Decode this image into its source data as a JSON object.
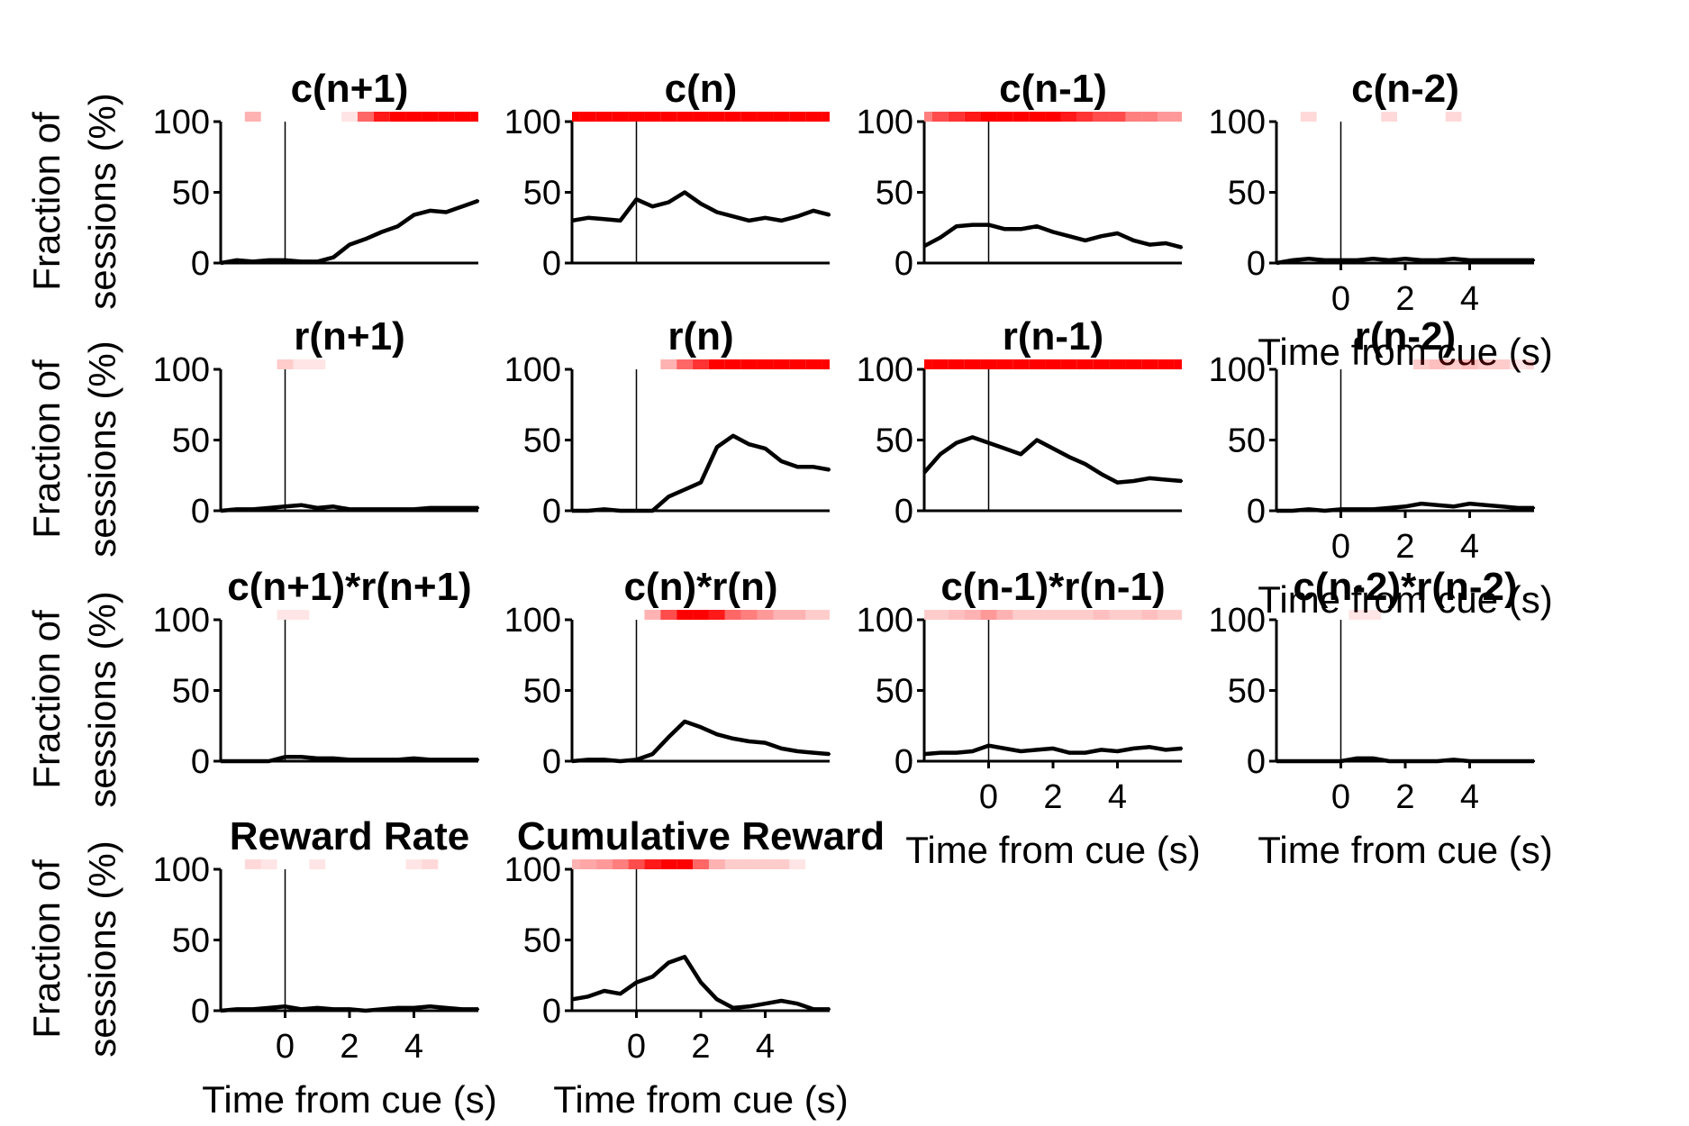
{
  "figure": {
    "y_axis_label_line1": "Fraction of",
    "y_axis_label_line2": "sessions (%)",
    "x_axis_label": "Time from cue (s)"
  },
  "chart_data": [
    {
      "type": "line",
      "title": "c(n+1)",
      "xlim": [
        -2,
        6
      ],
      "ylim": [
        0,
        100
      ],
      "xticks": [],
      "yticks": [
        0,
        50,
        100
      ],
      "x": [
        -2,
        -1.5,
        -1,
        -0.5,
        0,
        0.5,
        1,
        1.5,
        2,
        2.5,
        3,
        3.5,
        4,
        4.5,
        5,
        5.5,
        6
      ],
      "values": [
        0,
        2,
        1,
        2,
        2,
        1,
        1,
        4,
        13,
        17,
        22,
        26,
        34,
        37,
        36,
        40,
        44
      ],
      "significance": [
        0,
        0,
        0.3,
        0,
        0,
        0,
        0,
        0,
        0.1,
        0.6,
        0.9,
        1,
        1,
        1,
        1,
        1,
        1
      ]
    },
    {
      "type": "line",
      "title": "c(n)",
      "xlim": [
        -2,
        6
      ],
      "ylim": [
        0,
        100
      ],
      "xticks": [],
      "yticks": [
        0,
        50,
        100
      ],
      "x": [
        -2,
        -1.5,
        -1,
        -0.5,
        0,
        0.5,
        1,
        1.5,
        2,
        2.5,
        3,
        3.5,
        4,
        4.5,
        5,
        5.5,
        6
      ],
      "values": [
        30,
        32,
        31,
        30,
        45,
        40,
        43,
        50,
        42,
        36,
        33,
        30,
        32,
        30,
        33,
        37,
        34
      ],
      "significance": [
        1,
        1,
        1,
        1,
        1,
        1,
        1,
        1,
        1,
        1,
        1,
        1,
        1,
        1,
        1,
        1,
        1
      ]
    },
    {
      "type": "line",
      "title": "c(n-1)",
      "xlim": [
        -2,
        6
      ],
      "ylim": [
        0,
        100
      ],
      "xticks": [],
      "yticks": [
        0,
        50,
        100
      ],
      "x": [
        -2,
        -1.5,
        -1,
        -0.5,
        0,
        0.5,
        1,
        1.5,
        2,
        2.5,
        3,
        3.5,
        4,
        4.5,
        5,
        5.5,
        6
      ],
      "values": [
        12,
        18,
        26,
        27,
        27,
        24,
        24,
        26,
        22,
        19,
        16,
        19,
        21,
        16,
        13,
        14,
        11
      ],
      "significance": [
        0.5,
        0.7,
        0.8,
        0.9,
        1,
        1,
        1,
        1,
        1,
        0.9,
        0.8,
        0.7,
        0.7,
        0.5,
        0.5,
        0.4,
        0.4
      ]
    },
    {
      "type": "line",
      "title": "c(n-2)",
      "xlim": [
        -2,
        6
      ],
      "ylim": [
        0,
        100
      ],
      "xticks": [
        0,
        2,
        4
      ],
      "yticks": [
        0,
        50,
        100
      ],
      "x": [
        -2,
        -1.5,
        -1,
        -0.5,
        0,
        0.5,
        1,
        1.5,
        2,
        2.5,
        3,
        3.5,
        4,
        4.5,
        5,
        5.5,
        6
      ],
      "values": [
        0,
        2,
        3,
        2,
        2,
        2,
        3,
        2,
        3,
        2,
        2,
        3,
        2,
        2,
        2,
        2,
        2
      ],
      "significance": [
        0,
        0,
        0.15,
        0,
        0,
        0,
        0,
        0.15,
        0,
        0,
        0,
        0.15,
        0,
        0,
        0,
        0,
        0
      ]
    },
    {
      "type": "line",
      "title": "r(n+1)",
      "xlim": [
        -2,
        6
      ],
      "ylim": [
        0,
        100
      ],
      "xticks": [],
      "yticks": [
        0,
        50,
        100
      ],
      "x": [
        -2,
        -1.5,
        -1,
        -0.5,
        0,
        0.5,
        1,
        1.5,
        2,
        2.5,
        3,
        3.5,
        4,
        4.5,
        5,
        5.5,
        6
      ],
      "values": [
        0,
        1,
        1,
        2,
        3,
        4,
        2,
        3,
        1,
        1,
        1,
        1,
        1,
        2,
        2,
        2,
        2
      ],
      "significance": [
        0,
        0,
        0,
        0,
        0.2,
        0.1,
        0.1,
        0,
        0,
        0,
        0,
        0,
        0,
        0,
        0,
        0,
        0
      ]
    },
    {
      "type": "line",
      "title": "r(n)",
      "xlim": [
        -2,
        6
      ],
      "ylim": [
        0,
        100
      ],
      "xticks": [],
      "yticks": [
        0,
        50,
        100
      ],
      "x": [
        -2,
        -1.5,
        -1,
        -0.5,
        0,
        0.5,
        1,
        1.5,
        2,
        2.5,
        3,
        3.5,
        4,
        4.5,
        5,
        5.5,
        6
      ],
      "values": [
        0,
        0,
        1,
        0,
        0,
        0,
        10,
        15,
        20,
        45,
        53,
        47,
        44,
        35,
        31,
        31,
        29
      ],
      "significance": [
        0,
        0,
        0,
        0,
        0,
        0,
        0.3,
        0.6,
        0.8,
        1,
        1,
        1,
        1,
        1,
        1,
        1,
        1
      ]
    },
    {
      "type": "line",
      "title": "r(n-1)",
      "xlim": [
        -2,
        6
      ],
      "ylim": [
        0,
        100
      ],
      "xticks": [],
      "yticks": [
        0,
        50,
        100
      ],
      "x": [
        -2,
        -1.5,
        -1,
        -0.5,
        0,
        0.5,
        1,
        1.5,
        2,
        2.5,
        3,
        3.5,
        4,
        4.5,
        5,
        5.5,
        6
      ],
      "values": [
        27,
        40,
        48,
        52,
        48,
        44,
        40,
        50,
        44,
        38,
        33,
        26,
        20,
        21,
        23,
        22,
        21
      ],
      "significance": [
        1,
        1,
        1,
        1,
        1,
        1,
        1,
        1,
        1,
        1,
        1,
        1,
        1,
        1,
        1,
        1,
        1
      ]
    },
    {
      "type": "line",
      "title": "r(n-2)",
      "xlim": [
        -2,
        6
      ],
      "ylim": [
        0,
        100
      ],
      "xticks": [
        0,
        2,
        4
      ],
      "yticks": [
        0,
        50,
        100
      ],
      "x": [
        -2,
        -1.5,
        -1,
        -0.5,
        0,
        0.5,
        1,
        1.5,
        2,
        2.5,
        3,
        3.5,
        4,
        4.5,
        5,
        5.5,
        6
      ],
      "values": [
        0,
        0,
        1,
        0,
        1,
        1,
        1,
        2,
        3,
        5,
        4,
        3,
        5,
        4,
        3,
        2,
        2
      ],
      "significance": [
        0,
        0,
        0,
        0,
        0,
        0,
        0,
        0,
        0,
        0.2,
        0.25,
        0.2,
        0.25,
        0.2,
        0.2,
        0.1,
        0.15
      ]
    },
    {
      "type": "line",
      "title": "c(n+1)*r(n+1)",
      "xlim": [
        -2,
        6
      ],
      "ylim": [
        0,
        100
      ],
      "xticks": [],
      "yticks": [
        0,
        50,
        100
      ],
      "x": [
        -2,
        -1.5,
        -1,
        -0.5,
        0,
        0.5,
        1,
        1.5,
        2,
        2.5,
        3,
        3.5,
        4,
        4.5,
        5,
        5.5,
        6
      ],
      "values": [
        0,
        0,
        0,
        0,
        3,
        3,
        2,
        2,
        1,
        1,
        1,
        1,
        2,
        1,
        1,
        1,
        1
      ],
      "significance": [
        0,
        0,
        0,
        0,
        0.1,
        0.1,
        0,
        0,
        0,
        0,
        0,
        0,
        0,
        0,
        0,
        0,
        0
      ]
    },
    {
      "type": "line",
      "title": "c(n)*r(n)",
      "xlim": [
        -2,
        6
      ],
      "ylim": [
        0,
        100
      ],
      "xticks": [],
      "yticks": [
        0,
        50,
        100
      ],
      "x": [
        -2,
        -1.5,
        -1,
        -0.5,
        0,
        0.5,
        1,
        1.5,
        2,
        2.5,
        3,
        3.5,
        4,
        4.5,
        5,
        5.5,
        6
      ],
      "values": [
        0,
        1,
        1,
        0,
        1,
        5,
        17,
        28,
        24,
        19,
        16,
        14,
        13,
        9,
        7,
        6,
        5
      ],
      "significance": [
        0,
        0,
        0,
        0,
        0,
        0.3,
        0.7,
        1,
        1,
        0.9,
        0.6,
        0.5,
        0.4,
        0.3,
        0.3,
        0.2,
        0.2
      ]
    },
    {
      "type": "line",
      "title": "c(n-1)*r(n-1)",
      "xlim": [
        -2,
        6
      ],
      "ylim": [
        0,
        100
      ],
      "xticks": [
        0,
        2,
        4
      ],
      "yticks": [
        0,
        50,
        100
      ],
      "x": [
        -2,
        -1.5,
        -1,
        -0.5,
        0,
        0.5,
        1,
        1.5,
        2,
        2.5,
        3,
        3.5,
        4,
        4.5,
        5,
        5.5,
        6
      ],
      "values": [
        5,
        6,
        6,
        7,
        11,
        9,
        7,
        8,
        9,
        6,
        6,
        8,
        7,
        9,
        10,
        8,
        9
      ],
      "significance": [
        0.2,
        0.2,
        0.25,
        0.3,
        0.4,
        0.3,
        0.2,
        0.2,
        0.2,
        0.2,
        0.2,
        0.25,
        0.2,
        0.2,
        0.25,
        0.2,
        0.2
      ]
    },
    {
      "type": "line",
      "title": "c(n-2)*r(n-2)",
      "xlim": [
        -2,
        6
      ],
      "ylim": [
        0,
        100
      ],
      "xticks": [
        0,
        2,
        4
      ],
      "yticks": [
        0,
        50,
        100
      ],
      "x": [
        -2,
        -1.5,
        -1,
        -0.5,
        0,
        0.5,
        1,
        1.5,
        2,
        2.5,
        3,
        3.5,
        4,
        4.5,
        5,
        5.5,
        6
      ],
      "values": [
        0,
        0,
        0,
        0,
        0,
        2,
        2,
        0,
        0,
        0,
        0,
        1,
        0,
        0,
        0,
        0,
        0
      ],
      "significance": [
        0,
        0,
        0,
        0,
        0,
        0.1,
        0.1,
        0,
        0,
        0,
        0,
        0,
        0,
        0,
        0,
        0,
        0
      ]
    },
    {
      "type": "line",
      "title": "Reward Rate",
      "xlim": [
        -2,
        6
      ],
      "ylim": [
        0,
        100
      ],
      "xticks": [
        0,
        2,
        4
      ],
      "yticks": [
        0,
        50,
        100
      ],
      "x": [
        -2,
        -1.5,
        -1,
        -0.5,
        0,
        0.5,
        1,
        1.5,
        2,
        2.5,
        3,
        3.5,
        4,
        4.5,
        5,
        5.5,
        6
      ],
      "values": [
        0,
        1,
        1,
        2,
        3,
        1,
        2,
        1,
        1,
        0,
        1,
        2,
        2,
        3,
        2,
        1,
        1
      ],
      "significance": [
        0,
        0,
        0.15,
        0.1,
        0,
        0,
        0.1,
        0,
        0,
        0,
        0,
        0,
        0.1,
        0.15,
        0,
        0,
        0
      ]
    },
    {
      "type": "line",
      "title": "Cumulative Reward",
      "xlim": [
        -2,
        6
      ],
      "ylim": [
        0,
        100
      ],
      "xticks": [
        0,
        2,
        4
      ],
      "yticks": [
        0,
        50,
        100
      ],
      "x": [
        -2,
        -1.5,
        -1,
        -0.5,
        0,
        0.5,
        1,
        1.5,
        2,
        2.5,
        3,
        3.5,
        4,
        4.5,
        5,
        5.5,
        6
      ],
      "values": [
        8,
        10,
        14,
        12,
        20,
        24,
        34,
        38,
        20,
        8,
        2,
        3,
        5,
        7,
        5,
        1,
        1
      ],
      "significance": [
        0.3,
        0.35,
        0.4,
        0.5,
        0.7,
        0.9,
        1,
        1,
        0.6,
        0.3,
        0.2,
        0.2,
        0.2,
        0.2,
        0.1,
        0,
        0
      ]
    }
  ]
}
